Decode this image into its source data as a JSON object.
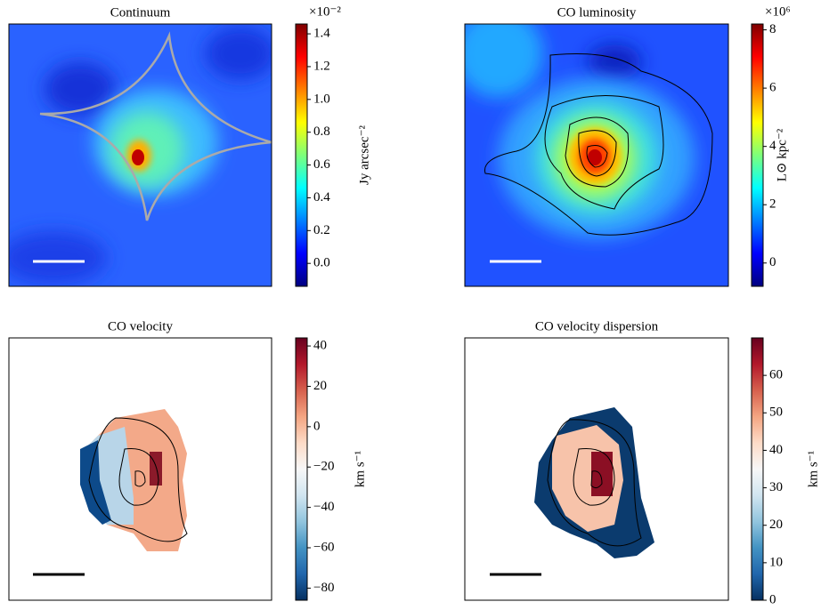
{
  "chart_data": [
    {
      "type": "heatmap",
      "title": "Continuum",
      "colorbar_label": "Jy arcsec⁻²",
      "offset_label": "×10⁻²",
      "colormap": "jet",
      "ylim": [
        -0.14,
        1.46
      ],
      "yticks": [
        {
          "value": 0,
          "label": "0.0"
        },
        0.2,
        0.4,
        0.6,
        0.8,
        {
          "value": 1,
          "label": "1.0"
        },
        1.2,
        1.4
      ]
    },
    {
      "type": "heatmap",
      "title": "CO luminosity",
      "colorbar_label": "L⊙ kpc⁻²",
      "offset_label": "×10⁶",
      "colormap": "jet",
      "ylim": [
        -0.8,
        8.2
      ],
      "yticks": [
        0,
        2,
        4,
        6,
        8
      ]
    },
    {
      "type": "heatmap",
      "title": "CO velocity",
      "colorbar_label": "km s⁻¹",
      "colormap": "RdBu_r",
      "ylim": [
        -86,
        44
      ],
      "yticks": [
        {
          "value": -80,
          "label": "−80"
        },
        {
          "value": -60,
          "label": "−60"
        },
        {
          "value": -40,
          "label": "−40"
        },
        {
          "value": -20,
          "label": "−20"
        },
        0,
        20,
        40
      ]
    },
    {
      "type": "heatmap",
      "title": "CO velocity dispersion",
      "colorbar_label": "km s⁻¹",
      "colormap": "RdBu_r",
      "ylim": [
        0,
        70
      ],
      "yticks": [
        0,
        10,
        20,
        30,
        40,
        50,
        60
      ]
    }
  ]
}
